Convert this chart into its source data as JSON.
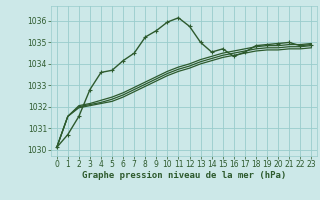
{
  "title": "Graphe pression niveau de la mer (hPa)",
  "bg_color": "#cce8e8",
  "grid_color": "#99cccc",
  "line_color": "#2d5a2d",
  "xlim": [
    -0.5,
    23.5
  ],
  "ylim": [
    1029.7,
    1036.7
  ],
  "yticks": [
    1030,
    1031,
    1032,
    1033,
    1034,
    1035,
    1036
  ],
  "xticks": [
    0,
    1,
    2,
    3,
    4,
    5,
    6,
    7,
    8,
    9,
    10,
    11,
    12,
    13,
    14,
    15,
    16,
    17,
    18,
    19,
    20,
    21,
    22,
    23
  ],
  "series_main": [
    1030.1,
    1030.7,
    1031.55,
    1032.8,
    1033.6,
    1033.7,
    1034.15,
    1034.5,
    1035.25,
    1035.55,
    1035.95,
    1036.15,
    1035.75,
    1035.0,
    1034.55,
    1034.7,
    1034.35,
    1034.55,
    1034.85,
    1034.9,
    1034.95,
    1035.0,
    1034.85,
    1034.9
  ],
  "series_linear": [
    [
      1030.1,
      1031.55,
      1032.05,
      1032.15,
      1032.3,
      1032.45,
      1032.65,
      1032.9,
      1033.15,
      1033.4,
      1033.65,
      1033.85,
      1034.0,
      1034.2,
      1034.35,
      1034.5,
      1034.6,
      1034.7,
      1034.8,
      1034.85,
      1034.85,
      1034.9,
      1034.9,
      1034.95
    ],
    [
      1030.1,
      1031.55,
      1032.0,
      1032.1,
      1032.2,
      1032.35,
      1032.55,
      1032.8,
      1033.05,
      1033.3,
      1033.55,
      1033.75,
      1033.9,
      1034.1,
      1034.25,
      1034.4,
      1034.5,
      1034.6,
      1034.7,
      1034.75,
      1034.75,
      1034.8,
      1034.8,
      1034.85
    ],
    [
      1030.1,
      1031.55,
      1031.95,
      1032.05,
      1032.15,
      1032.25,
      1032.45,
      1032.7,
      1032.95,
      1033.2,
      1033.45,
      1033.65,
      1033.8,
      1034.0,
      1034.15,
      1034.3,
      1034.4,
      1034.5,
      1034.6,
      1034.65,
      1034.65,
      1034.7,
      1034.7,
      1034.75
    ]
  ],
  "marker_size": 3.5,
  "linewidth_main": 1.0,
  "linewidth_linear": 0.9,
  "tick_fontsize": 5.5,
  "label_fontsize": 6.5
}
